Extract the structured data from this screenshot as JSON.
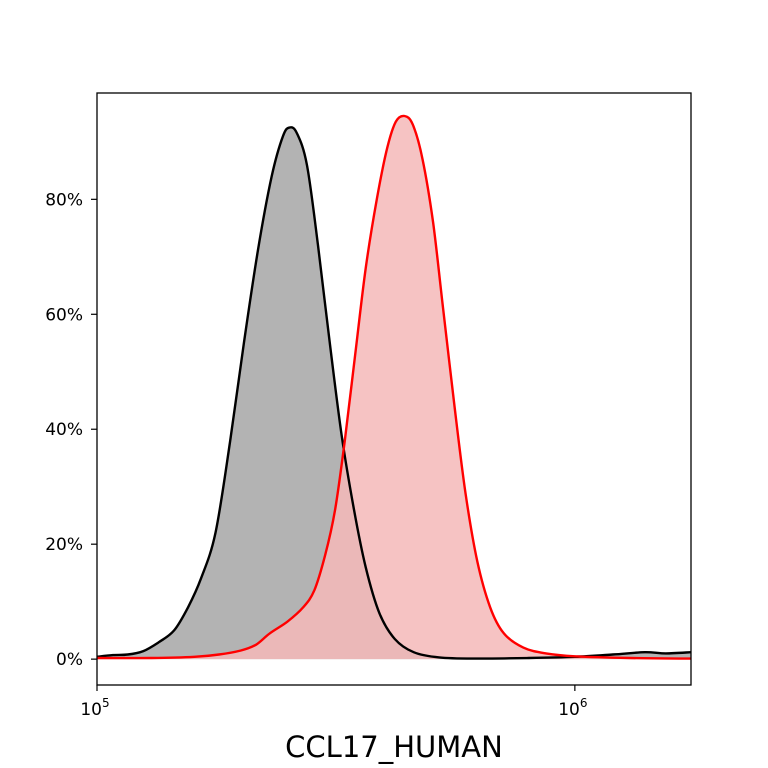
{
  "chart_data": {
    "type": "area",
    "xlabel": "CCL17_HUMAN",
    "ylabel": "",
    "x_scale": "log",
    "xlim": [
      100000,
      1750000
    ],
    "ylim": [
      -0.045,
      0.985
    ],
    "grid": false,
    "legend": "none",
    "x_ticks": [
      {
        "value": 100000,
        "base": "10",
        "exp": "5"
      },
      {
        "value": 1000000,
        "base": "10",
        "exp": "6"
      }
    ],
    "y_ticks": [
      {
        "value": 0.0,
        "label": "0%"
      },
      {
        "value": 0.2,
        "label": "20%"
      },
      {
        "value": 0.4,
        "label": "40%"
      },
      {
        "value": 0.6,
        "label": "60%"
      },
      {
        "value": 0.8,
        "label": "80%"
      }
    ],
    "series": [
      {
        "line_color": "#000000",
        "fill_color": "#b3b3b3",
        "points": [
          [
            100000,
            0.004
          ],
          [
            108000,
            0.007
          ],
          [
            116000,
            0.008
          ],
          [
            125000,
            0.014
          ],
          [
            135000,
            0.03
          ],
          [
            145000,
            0.05
          ],
          [
            155000,
            0.09
          ],
          [
            165000,
            0.14
          ],
          [
            177000,
            0.22
          ],
          [
            190000,
            0.38
          ],
          [
            203000,
            0.55
          ],
          [
            217000,
            0.71
          ],
          [
            232000,
            0.84
          ],
          [
            245000,
            0.91
          ],
          [
            253000,
            0.925
          ],
          [
            262000,
            0.915
          ],
          [
            275000,
            0.86
          ],
          [
            290000,
            0.72
          ],
          [
            307000,
            0.55
          ],
          [
            325000,
            0.39
          ],
          [
            345000,
            0.26
          ],
          [
            365000,
            0.16
          ],
          [
            390000,
            0.08
          ],
          [
            420000,
            0.035
          ],
          [
            460000,
            0.012
          ],
          [
            520000,
            0.003
          ],
          [
            620000,
            0.001
          ],
          [
            800000,
            0.002
          ],
          [
            1000000,
            0.004
          ],
          [
            1200000,
            0.008
          ],
          [
            1400000,
            0.012
          ],
          [
            1550000,
            0.01
          ],
          [
            1750000,
            0.012
          ]
        ]
      },
      {
        "line_color": "#ff0000",
        "fill_color": "#f4b8b8",
        "points": [
          [
            100000,
            0.002
          ],
          [
            130000,
            0.002
          ],
          [
            160000,
            0.004
          ],
          [
            180000,
            0.008
          ],
          [
            200000,
            0.015
          ],
          [
            215000,
            0.025
          ],
          [
            230000,
            0.045
          ],
          [
            250000,
            0.065
          ],
          [
            270000,
            0.09
          ],
          [
            285000,
            0.12
          ],
          [
            300000,
            0.18
          ],
          [
            315000,
            0.26
          ],
          [
            330000,
            0.38
          ],
          [
            347000,
            0.53
          ],
          [
            365000,
            0.68
          ],
          [
            385000,
            0.8
          ],
          [
            405000,
            0.89
          ],
          [
            422000,
            0.935
          ],
          [
            440000,
            0.945
          ],
          [
            458000,
            0.93
          ],
          [
            480000,
            0.87
          ],
          [
            505000,
            0.76
          ],
          [
            530000,
            0.61
          ],
          [
            560000,
            0.44
          ],
          [
            590000,
            0.29
          ],
          [
            625000,
            0.17
          ],
          [
            665000,
            0.09
          ],
          [
            710000,
            0.045
          ],
          [
            780000,
            0.02
          ],
          [
            870000,
            0.01
          ],
          [
            1000000,
            0.005
          ],
          [
            1300000,
            0.002
          ],
          [
            1750000,
            0.001
          ]
        ]
      }
    ]
  }
}
